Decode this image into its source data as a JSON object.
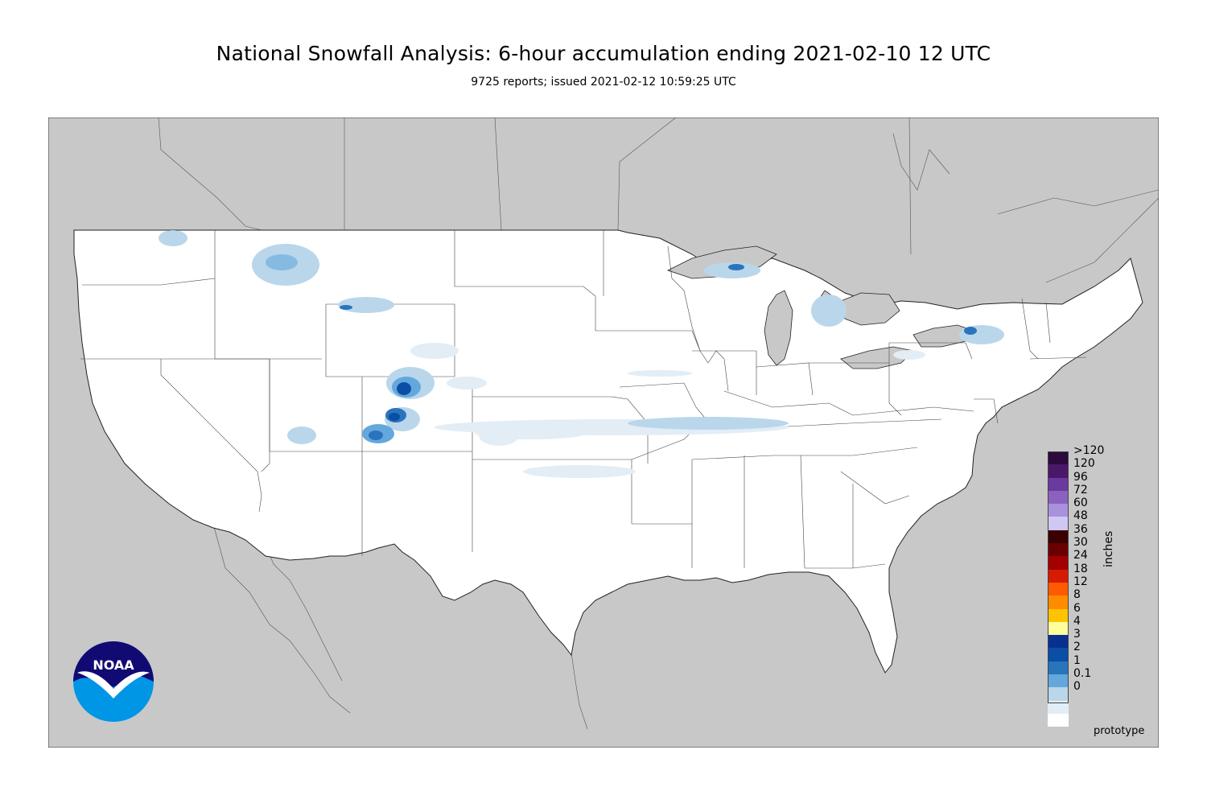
{
  "title": "National Snowfall Analysis: 6-hour accumulation ending 2021-02-10 12 UTC",
  "subtitle": "9725 reports; issued 2021-02-12 10:59:25 UTC",
  "map": {
    "region": "Contiguous United States",
    "background_color": "#c8c8c8",
    "land_color": "#ffffff",
    "boundary_color": "#333333"
  },
  "legend": {
    "units_label": "inches",
    "bins": [
      {
        "label": ">120",
        "color": "#2b0a3d"
      },
      {
        "label": "120",
        "color": "#4a1869"
      },
      {
        "label": "96",
        "color": "#6b3aa0"
      },
      {
        "label": "72",
        "color": "#8a62bd"
      },
      {
        "label": "60",
        "color": "#a892dd"
      },
      {
        "label": "48",
        "color": "#cfc8f5"
      },
      {
        "label": "36",
        "color": "#3a0000"
      },
      {
        "label": "30",
        "color": "#6b0000"
      },
      {
        "label": "24",
        "color": "#a30000"
      },
      {
        "label": "18",
        "color": "#d61c00"
      },
      {
        "label": "12",
        "color": "#ff5a00"
      },
      {
        "label": "8",
        "color": "#ff8c00"
      },
      {
        "label": "6",
        "color": "#ffc400"
      },
      {
        "label": "4",
        "color": "#ffff9c"
      },
      {
        "label": "3",
        "color": "#08308f"
      },
      {
        "label": "2",
        "color": "#0b4ea6"
      },
      {
        "label": "1",
        "color": "#2a74bd"
      },
      {
        "label": "0.1",
        "color": "#63a8dc"
      },
      {
        "label": "0",
        "color": "#bad6eb"
      }
    ],
    "bottom_bins": [
      {
        "color": "#e3edf6"
      },
      {
        "color": "#ffffff"
      }
    ]
  },
  "logo": {
    "text": "NOAA",
    "icon": "noaa-logo-icon"
  },
  "footer_note": "prototype"
}
